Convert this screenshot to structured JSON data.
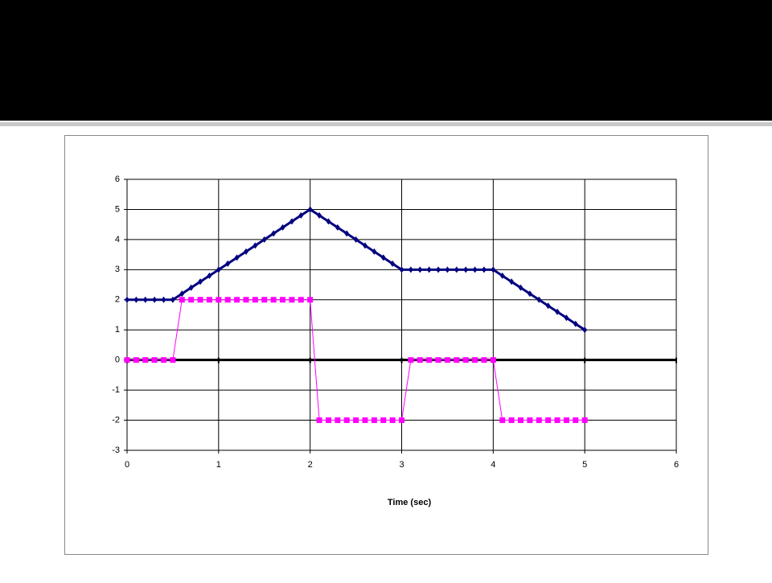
{
  "chart_data": {
    "type": "line",
    "xlabel": "Time (sec)",
    "x": [
      0,
      0.1,
      0.2,
      0.3,
      0.4,
      0.5,
      0.6,
      0.7,
      0.8,
      0.9,
      1,
      1.1,
      1.2,
      1.3,
      1.4,
      1.5,
      1.6,
      1.7,
      1.8,
      1.9,
      2,
      2.1,
      2.2,
      2.3,
      2.4,
      2.5,
      2.6,
      2.7,
      2.8,
      2.9,
      3,
      3.1,
      3.2,
      3.3,
      3.4,
      3.5,
      3.6,
      3.7,
      3.8,
      3.9,
      4,
      4.1,
      4.2,
      4.3,
      4.4,
      4.5,
      4.6,
      4.7,
      4.8,
      4.9,
      5
    ],
    "series": [
      {
        "color": "#000080",
        "marker": "diamond",
        "values": [
          2,
          2,
          2,
          2,
          2,
          2,
          2.2,
          2.4,
          2.6,
          2.8,
          3,
          3.2,
          3.4,
          3.6,
          3.8,
          4,
          4.2,
          4.4,
          4.6,
          4.8,
          5,
          4.8,
          4.6,
          4.4,
          4.2,
          4,
          3.8,
          3.6,
          3.4,
          3.2,
          3,
          3,
          3,
          3,
          3,
          3,
          3,
          3,
          3,
          3,
          3,
          2.8,
          2.6,
          2.4,
          2.2,
          2,
          1.8,
          1.6,
          1.4,
          1.2,
          1
        ]
      },
      {
        "color": "#ff00ff",
        "marker": "square",
        "values": [
          0,
          0,
          0,
          0,
          0,
          0,
          2,
          2,
          2,
          2,
          2,
          2,
          2,
          2,
          2,
          2,
          2,
          2,
          2,
          2,
          2,
          -2,
          -2,
          -2,
          -2,
          -2,
          -2,
          -2,
          -2,
          -2,
          -2,
          0,
          0,
          0,
          0,
          0,
          0,
          0,
          0,
          0,
          0,
          -2,
          -2,
          -2,
          -2,
          -2,
          -2,
          -2,
          -2,
          -2,
          -2
        ]
      }
    ],
    "xlim": [
      0,
      6
    ],
    "xticks": [
      0,
      1,
      2,
      3,
      4,
      5,
      6
    ],
    "ylim": [
      -3,
      6
    ],
    "yticks": [
      -3,
      -2,
      -1,
      0,
      1,
      2,
      3,
      4,
      5,
      6
    ],
    "grid": true
  }
}
